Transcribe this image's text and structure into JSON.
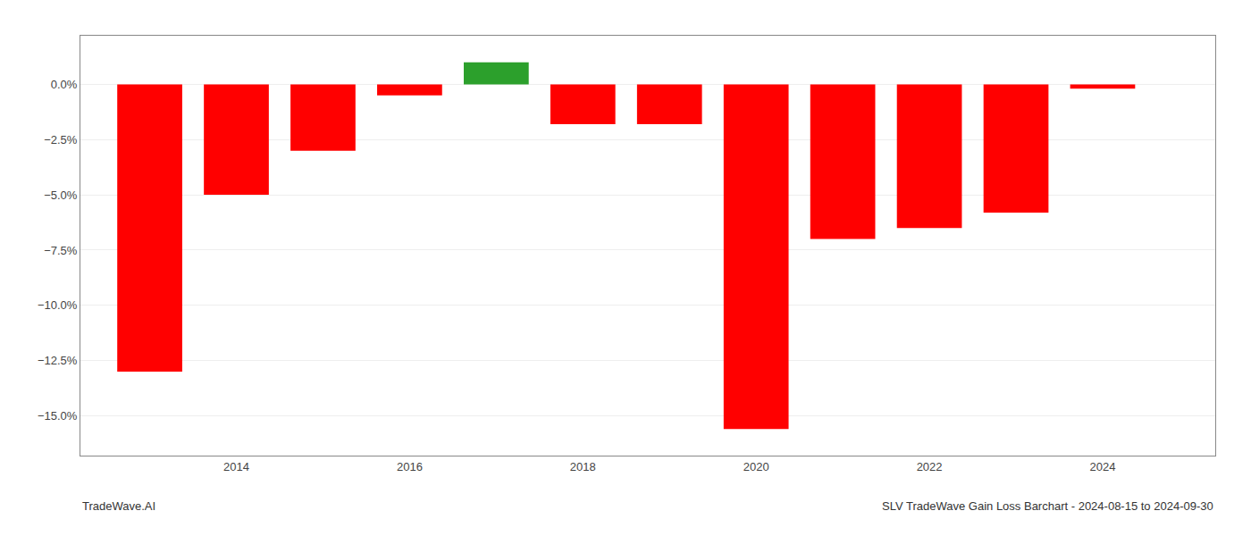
{
  "chart_data": {
    "type": "bar",
    "x": [
      2013,
      2014,
      2015,
      2016,
      2017,
      2018,
      2019,
      2020,
      2021,
      2022,
      2023,
      2024
    ],
    "values": [
      -13.0,
      -5.0,
      -3.0,
      -0.5,
      1.0,
      -1.8,
      -1.8,
      -15.6,
      -7.0,
      -6.5,
      -5.8,
      -0.2
    ],
    "colors": [
      "#ff0000",
      "#ff0000",
      "#ff0000",
      "#ff0000",
      "#2ca02c",
      "#ff0000",
      "#ff0000",
      "#ff0000",
      "#ff0000",
      "#ff0000",
      "#ff0000",
      "#ff0000"
    ],
    "xlim": [
      2012.2,
      2025.3
    ],
    "xticks": [
      2014,
      2016,
      2018,
      2020,
      2022,
      2024
    ],
    "ylim": [
      -16.8,
      2.2
    ],
    "yticks": [
      {
        "value": 0.0,
        "label": "0.0%"
      },
      {
        "value": -2.5,
        "label": "−2.5%"
      },
      {
        "value": -5.0,
        "label": "−5.0%"
      },
      {
        "value": -7.5,
        "label": "−7.5%"
      },
      {
        "value": -10.0,
        "label": "−10.0%"
      },
      {
        "value": -12.5,
        "label": "−12.5%"
      },
      {
        "value": -15.0,
        "label": "−15.0%"
      }
    ],
    "grid": true,
    "annotations": [
      "TradeWave.AI",
      "SLV TradeWave Gain Loss Barchart - 2024-08-15 to 2024-09-30"
    ]
  }
}
